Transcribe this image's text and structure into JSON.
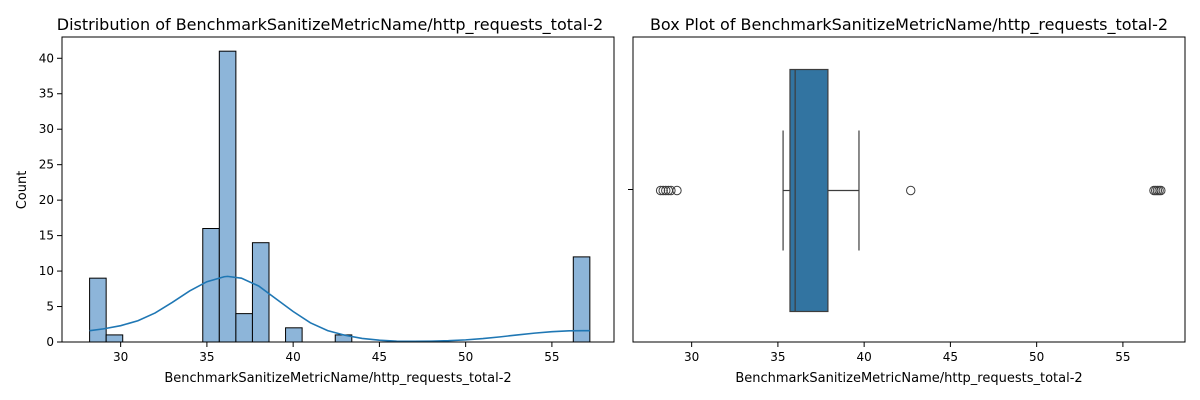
{
  "chart_data": [
    {
      "type": "bar",
      "subtype": "histogram-with-kde",
      "title": "Distribution of BenchmarkSanitizeMetricName/http_requests_total-2",
      "xlabel": "BenchmarkSanitizeMetricName/http_requests_total-2",
      "ylabel": "Count",
      "xlim": [
        26.6,
        58.6
      ],
      "ylim": [
        0,
        43
      ],
      "xticks": [
        30,
        35,
        40,
        45,
        50,
        55
      ],
      "yticks": [
        0,
        5,
        10,
        15,
        20,
        25,
        30,
        35,
        40
      ],
      "bins": [
        {
          "x0": 28.2,
          "x1": 29.16,
          "count": 9
        },
        {
          "x0": 29.16,
          "x1": 30.12,
          "count": 1
        },
        {
          "x0": 34.76,
          "x1": 35.72,
          "count": 16
        },
        {
          "x0": 35.72,
          "x1": 36.68,
          "count": 41
        },
        {
          "x0": 36.68,
          "x1": 37.64,
          "count": 4
        },
        {
          "x0": 37.64,
          "x1": 38.6,
          "count": 14
        },
        {
          "x0": 39.56,
          "x1": 40.52,
          "count": 2
        },
        {
          "x0": 42.44,
          "x1": 43.4,
          "count": 1
        },
        {
          "x0": 56.24,
          "x1": 57.2,
          "count": 12
        }
      ],
      "kde": {
        "x": [
          28.2,
          29,
          30,
          31,
          32,
          33,
          34,
          35,
          36,
          36.2,
          37,
          38,
          39,
          40,
          41,
          42,
          43,
          44,
          45,
          46,
          47,
          48,
          49,
          50,
          51,
          52,
          53,
          54,
          55,
          56,
          56.8,
          57.2
        ],
        "y": [
          1.6,
          1.85,
          2.3,
          3.0,
          4.1,
          5.6,
          7.2,
          8.5,
          9.2,
          9.25,
          9.0,
          7.9,
          6.1,
          4.3,
          2.7,
          1.6,
          0.95,
          0.5,
          0.25,
          0.12,
          0.1,
          0.12,
          0.18,
          0.3,
          0.48,
          0.72,
          1.0,
          1.25,
          1.45,
          1.57,
          1.6,
          1.6
        ]
      },
      "colors": {
        "bar_fill": "#8db5d9",
        "bar_edge": "#000000",
        "kde": "#1f77b4"
      }
    },
    {
      "type": "box",
      "title": "Box Plot of BenchmarkSanitizeMetricName/http_requests_total-2",
      "xlabel": "BenchmarkSanitizeMetricName/http_requests_total-2",
      "xlim": [
        26.6,
        58.6
      ],
      "xticks": [
        30,
        35,
        40,
        45,
        50,
        55
      ],
      "box": {
        "whisker_low": 35.3,
        "q1": 35.7,
        "median": 36.0,
        "q3": 37.9,
        "whisker_high": 39.7
      },
      "outliers": [
        28.2,
        28.35,
        28.5,
        28.65,
        28.8,
        29.15,
        42.7,
        56.8,
        56.9,
        57.0,
        57.1,
        57.2
      ],
      "colors": {
        "box_fill": "#3274a1",
        "line": "#3d3d3d"
      }
    }
  ]
}
